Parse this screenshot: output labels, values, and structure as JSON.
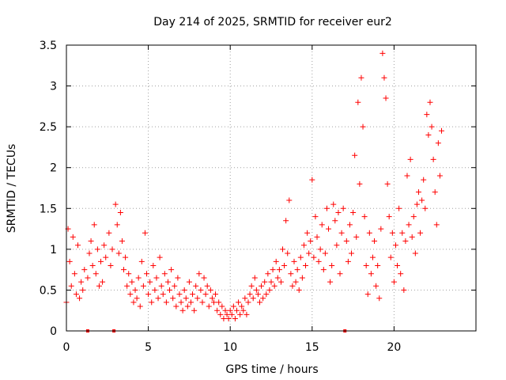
{
  "chart_data": {
    "type": "scatter",
    "title": "Day 214 of 2025, SRMTID for receiver eur2",
    "xlabel": "GPS time / hours",
    "ylabel": "SRMTID / TECUs",
    "xlim": [
      0,
      25
    ],
    "ylim": [
      0,
      3.5
    ],
    "x_ticks": [
      0,
      5,
      10,
      15,
      20
    ],
    "x_tick_labels": [
      "0",
      "5",
      "10",
      "15",
      "20"
    ],
    "y_ticks": [
      0,
      0.5,
      1,
      1.5,
      2,
      2.5,
      3,
      3.5
    ],
    "y_tick_labels": [
      "0",
      "0.5",
      "1",
      "1.5",
      "2",
      "2.5",
      "3",
      "3.5"
    ],
    "grid": true,
    "marker": "+",
    "color": "#ff0000",
    "gap_markers_x": [
      1.3,
      2.9,
      17.0
    ],
    "series": [
      {
        "name": "SRMTID",
        "points": [
          [
            0.0,
            0.35
          ],
          [
            0.1,
            1.25
          ],
          [
            0.2,
            0.85
          ],
          [
            0.3,
            0.55
          ],
          [
            0.4,
            1.15
          ],
          [
            0.5,
            0.7
          ],
          [
            0.6,
            0.45
          ],
          [
            0.7,
            1.05
          ],
          [
            0.8,
            0.4
          ],
          [
            0.9,
            0.6
          ],
          [
            1.0,
            0.5
          ],
          [
            1.1,
            0.75
          ],
          [
            1.3,
            0.65
          ],
          [
            1.4,
            0.95
          ],
          [
            1.5,
            1.1
          ],
          [
            1.6,
            0.8
          ],
          [
            1.7,
            1.3
          ],
          [
            1.8,
            0.7
          ],
          [
            1.9,
            1.0
          ],
          [
            2.0,
            0.55
          ],
          [
            2.1,
            0.85
          ],
          [
            2.2,
            0.6
          ],
          [
            2.3,
            1.05
          ],
          [
            2.4,
            0.9
          ],
          [
            2.6,
            1.2
          ],
          [
            2.7,
            0.8
          ],
          [
            2.8,
            1.0
          ],
          [
            3.0,
            1.55
          ],
          [
            3.1,
            1.3
          ],
          [
            3.2,
            0.95
          ],
          [
            3.3,
            1.45
          ],
          [
            3.4,
            1.1
          ],
          [
            3.5,
            0.75
          ],
          [
            3.6,
            0.9
          ],
          [
            3.7,
            0.55
          ],
          [
            3.8,
            0.7
          ],
          [
            3.9,
            0.45
          ],
          [
            4.0,
            0.6
          ],
          [
            4.1,
            0.35
          ],
          [
            4.2,
            0.5
          ],
          [
            4.3,
            0.4
          ],
          [
            4.4,
            0.65
          ],
          [
            4.5,
            0.3
          ],
          [
            4.6,
            0.85
          ],
          [
            4.7,
            0.55
          ],
          [
            4.8,
            1.2
          ],
          [
            4.9,
            0.7
          ],
          [
            5.0,
            0.45
          ],
          [
            5.1,
            0.6
          ],
          [
            5.2,
            0.35
          ],
          [
            5.3,
            0.8
          ],
          [
            5.4,
            0.5
          ],
          [
            5.5,
            0.65
          ],
          [
            5.6,
            0.4
          ],
          [
            5.7,
            0.9
          ],
          [
            5.8,
            0.55
          ],
          [
            5.9,
            0.45
          ],
          [
            6.0,
            0.7
          ],
          [
            6.1,
            0.35
          ],
          [
            6.2,
            0.6
          ],
          [
            6.3,
            0.5
          ],
          [
            6.4,
            0.75
          ],
          [
            6.5,
            0.4
          ],
          [
            6.6,
            0.55
          ],
          [
            6.7,
            0.3
          ],
          [
            6.8,
            0.65
          ],
          [
            6.9,
            0.45
          ],
          [
            7.0,
            0.35
          ],
          [
            7.1,
            0.25
          ],
          [
            7.2,
            0.5
          ],
          [
            7.3,
            0.4
          ],
          [
            7.4,
            0.3
          ],
          [
            7.5,
            0.6
          ],
          [
            7.6,
            0.35
          ],
          [
            7.7,
            0.45
          ],
          [
            7.8,
            0.25
          ],
          [
            7.9,
            0.55
          ],
          [
            8.0,
            0.4
          ],
          [
            8.1,
            0.7
          ],
          [
            8.2,
            0.5
          ],
          [
            8.3,
            0.35
          ],
          [
            8.4,
            0.65
          ],
          [
            8.5,
            0.45
          ],
          [
            8.6,
            0.55
          ],
          [
            8.7,
            0.3
          ],
          [
            8.8,
            0.5
          ],
          [
            8.9,
            0.4
          ],
          [
            9.0,
            0.35
          ],
          [
            9.1,
            0.45
          ],
          [
            9.2,
            0.25
          ],
          [
            9.3,
            0.35
          ],
          [
            9.4,
            0.2
          ],
          [
            9.5,
            0.3
          ],
          [
            9.6,
            0.15
          ],
          [
            9.7,
            0.25
          ],
          [
            9.8,
            0.2
          ],
          [
            9.9,
            0.15
          ],
          [
            10.0,
            0.25
          ],
          [
            10.1,
            0.2
          ],
          [
            10.2,
            0.3
          ],
          [
            10.3,
            0.15
          ],
          [
            10.4,
            0.25
          ],
          [
            10.5,
            0.35
          ],
          [
            10.6,
            0.2
          ],
          [
            10.7,
            0.3
          ],
          [
            10.8,
            0.25
          ],
          [
            10.9,
            0.4
          ],
          [
            11.0,
            0.2
          ],
          [
            11.1,
            0.35
          ],
          [
            11.2,
            0.45
          ],
          [
            11.3,
            0.55
          ],
          [
            11.4,
            0.4
          ],
          [
            11.5,
            0.65
          ],
          [
            11.6,
            0.5
          ],
          [
            11.7,
            0.45
          ],
          [
            11.8,
            0.35
          ],
          [
            11.9,
            0.55
          ],
          [
            12.0,
            0.4
          ],
          [
            12.1,
            0.6
          ],
          [
            12.2,
            0.45
          ],
          [
            12.3,
            0.7
          ],
          [
            12.4,
            0.5
          ],
          [
            12.5,
            0.6
          ],
          [
            12.6,
            0.75
          ],
          [
            12.7,
            0.55
          ],
          [
            12.8,
            0.85
          ],
          [
            12.9,
            0.65
          ],
          [
            13.0,
            0.75
          ],
          [
            13.1,
            0.6
          ],
          [
            13.2,
            1.0
          ],
          [
            13.3,
            0.8
          ],
          [
            13.4,
            1.35
          ],
          [
            13.5,
            0.95
          ],
          [
            13.6,
            1.6
          ],
          [
            13.7,
            0.7
          ],
          [
            13.8,
            0.55
          ],
          [
            13.9,
            0.85
          ],
          [
            14.0,
            0.6
          ],
          [
            14.1,
            0.75
          ],
          [
            14.2,
            0.5
          ],
          [
            14.3,
            0.9
          ],
          [
            14.4,
            0.65
          ],
          [
            14.5,
            1.05
          ],
          [
            14.6,
            0.8
          ],
          [
            14.7,
            1.2
          ],
          [
            14.8,
            0.95
          ],
          [
            14.9,
            1.1
          ],
          [
            15.0,
            1.85
          ],
          [
            15.1,
            0.9
          ],
          [
            15.2,
            1.4
          ],
          [
            15.3,
            1.15
          ],
          [
            15.4,
            0.85
          ],
          [
            15.5,
            1.0
          ],
          [
            15.6,
            1.3
          ],
          [
            15.7,
            0.75
          ],
          [
            15.8,
            0.95
          ],
          [
            15.9,
            1.5
          ],
          [
            16.0,
            1.25
          ],
          [
            16.1,
            0.6
          ],
          [
            16.2,
            0.8
          ],
          [
            16.3,
            1.55
          ],
          [
            16.4,
            1.35
          ],
          [
            16.5,
            1.05
          ],
          [
            16.6,
            1.45
          ],
          [
            16.7,
            0.7
          ],
          [
            16.8,
            1.2
          ],
          [
            16.9,
            1.5
          ],
          [
            17.1,
            1.1
          ],
          [
            17.2,
            0.85
          ],
          [
            17.3,
            1.3
          ],
          [
            17.4,
            0.95
          ],
          [
            17.5,
            1.45
          ],
          [
            17.6,
            2.15
          ],
          [
            17.7,
            1.15
          ],
          [
            17.8,
            2.8
          ],
          [
            17.9,
            1.8
          ],
          [
            18.0,
            3.1
          ],
          [
            18.1,
            2.5
          ],
          [
            18.2,
            1.4
          ],
          [
            18.3,
            0.8
          ],
          [
            18.4,
            0.45
          ],
          [
            18.5,
            1.2
          ],
          [
            18.6,
            0.7
          ],
          [
            18.7,
            0.9
          ],
          [
            18.8,
            1.1
          ],
          [
            18.9,
            0.55
          ],
          [
            19.0,
            0.8
          ],
          [
            19.1,
            0.4
          ],
          [
            19.2,
            1.25
          ],
          [
            19.3,
            3.4
          ],
          [
            19.4,
            3.1
          ],
          [
            19.5,
            2.85
          ],
          [
            19.6,
            1.8
          ],
          [
            19.7,
            1.4
          ],
          [
            19.8,
            0.9
          ],
          [
            19.9,
            1.2
          ],
          [
            20.0,
            0.6
          ],
          [
            20.1,
            1.05
          ],
          [
            20.2,
            0.8
          ],
          [
            20.3,
            1.5
          ],
          [
            20.4,
            0.7
          ],
          [
            20.5,
            1.2
          ],
          [
            20.6,
            0.5
          ],
          [
            20.7,
            1.1
          ],
          [
            20.8,
            1.9
          ],
          [
            20.9,
            1.3
          ],
          [
            21.0,
            2.1
          ],
          [
            21.1,
            1.15
          ],
          [
            21.2,
            1.4
          ],
          [
            21.3,
            0.95
          ],
          [
            21.4,
            1.55
          ],
          [
            21.5,
            1.7
          ],
          [
            21.6,
            1.2
          ],
          [
            21.7,
            1.6
          ],
          [
            21.8,
            1.85
          ],
          [
            21.9,
            1.5
          ],
          [
            22.0,
            2.65
          ],
          [
            22.1,
            2.4
          ],
          [
            22.2,
            2.8
          ],
          [
            22.3,
            2.5
          ],
          [
            22.4,
            2.1
          ],
          [
            22.5,
            1.7
          ],
          [
            22.6,
            1.3
          ],
          [
            22.7,
            2.3
          ],
          [
            22.8,
            1.9
          ],
          [
            22.9,
            2.45
          ]
        ]
      }
    ]
  }
}
